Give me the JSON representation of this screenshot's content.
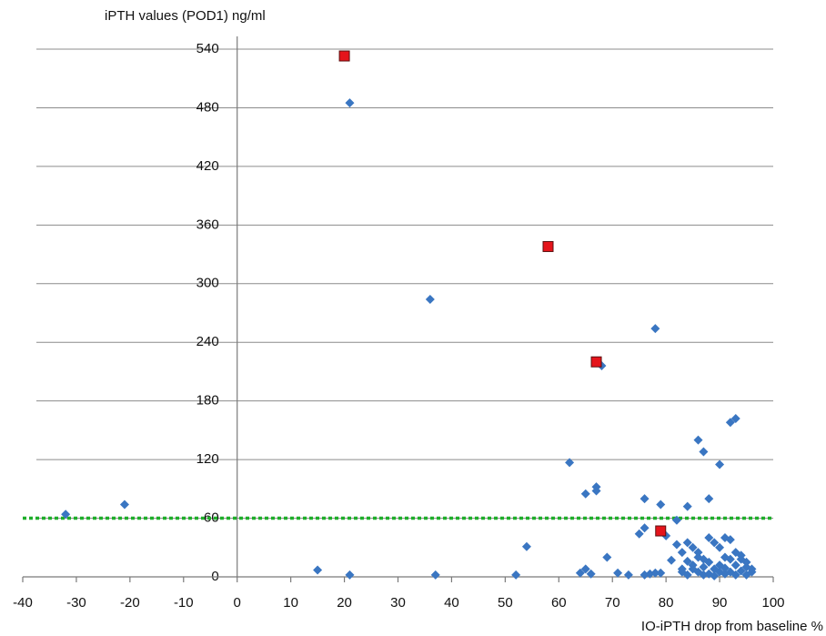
{
  "chart_data": {
    "type": "scatter",
    "y_label": "iPTH values (POD1)  ng/ml",
    "x_label": "IO-iPTH drop from baseline %",
    "xlim": [
      -40,
      100
    ],
    "xticks": [
      -40,
      -30,
      -20,
      -10,
      0,
      10,
      20,
      30,
      40,
      50,
      60,
      70,
      80,
      90,
      100
    ],
    "ylim": [
      0,
      540
    ],
    "yticks": [
      0,
      60,
      120,
      180,
      240,
      300,
      360,
      420,
      480,
      540
    ],
    "grid": true,
    "hline": {
      "value": 60,
      "color": "#1fae2a",
      "dashed": true
    },
    "series": [
      {
        "color": "#3a76c2",
        "marker": "diamond",
        "x": [
          -32,
          -21,
          21,
          36,
          15,
          21,
          37,
          52,
          54,
          62,
          65,
          67,
          67,
          68,
          78,
          64,
          65,
          66,
          69,
          71,
          73,
          75,
          76,
          76,
          76,
          77,
          78,
          79,
          79,
          80,
          81,
          82,
          82,
          83,
          83,
          84,
          84,
          85,
          86,
          86,
          87,
          87,
          88,
          88,
          89,
          90,
          90,
          91,
          92,
          92,
          93,
          94,
          95,
          96,
          84,
          85,
          86,
          87,
          88,
          88,
          89,
          89,
          90,
          91,
          91,
          92,
          92,
          93,
          93,
          94,
          95,
          95,
          96,
          86,
          87,
          90,
          91,
          93,
          94,
          85,
          84,
          83
        ],
        "values": [
          64,
          74,
          485,
          284,
          7,
          2,
          2,
          2,
          31,
          117,
          85,
          92,
          88,
          216,
          254,
          4,
          8,
          3,
          20,
          4,
          2,
          44,
          50,
          80,
          2,
          3,
          4,
          4,
          74,
          42,
          17,
          33,
          58,
          5,
          25,
          72,
          35,
          30,
          140,
          20,
          10,
          128,
          80,
          40,
          35,
          115,
          5,
          20,
          158,
          38,
          162,
          22,
          10,
          5,
          2,
          8,
          5,
          2,
          15,
          3,
          8,
          1,
          12,
          3,
          9,
          5,
          18,
          2,
          12,
          6,
          15,
          2,
          8,
          25,
          18,
          30,
          40,
          25,
          18,
          12,
          16,
          8
        ]
      },
      {
        "color": "#e5141b",
        "marker": "square",
        "x": [
          20,
          58,
          67,
          79
        ],
        "values": [
          533,
          338,
          220,
          47
        ]
      }
    ]
  }
}
